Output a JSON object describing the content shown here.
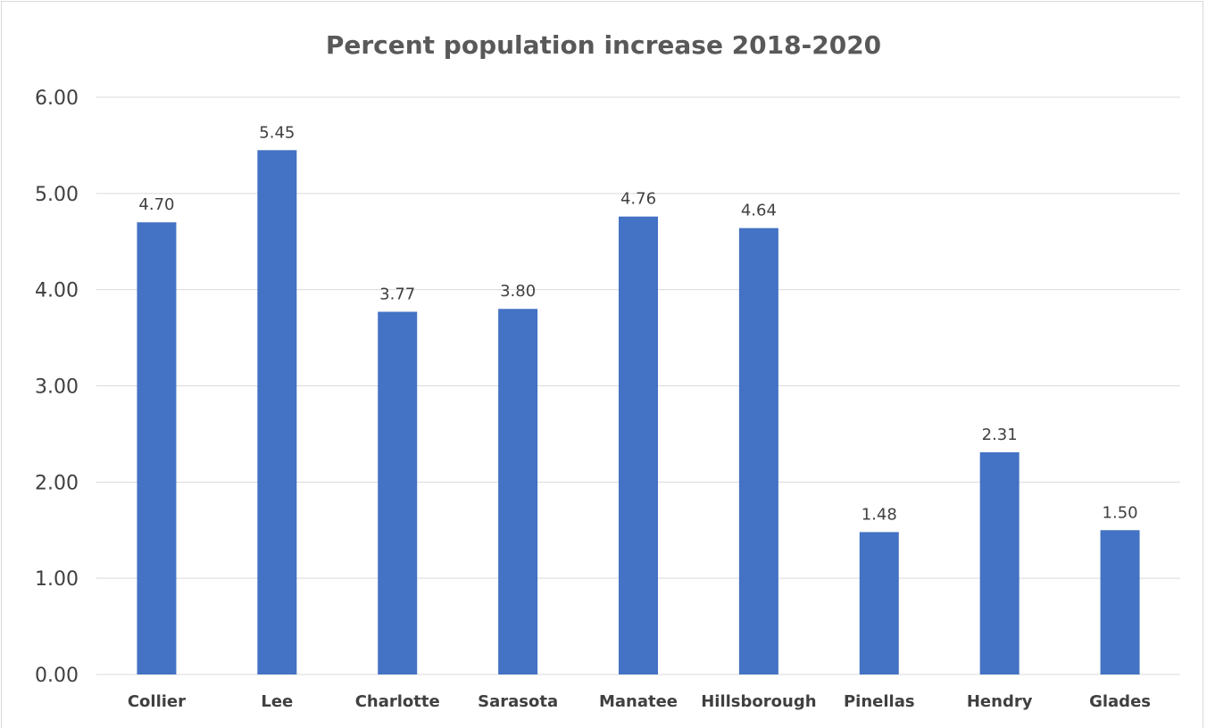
{
  "chart_data": {
    "type": "bar",
    "title": "Percent population increase 2018-2020",
    "categories": [
      "Collier",
      "Lee",
      "Charlotte",
      "Sarasota",
      "Manatee",
      "Hillsborough",
      "Pinellas",
      "Hendry",
      "Glades"
    ],
    "values": [
      4.7,
      5.45,
      3.77,
      3.8,
      4.76,
      4.64,
      1.48,
      2.31,
      1.5
    ],
    "value_labels": [
      "4.70",
      "5.45",
      "3.77",
      "3.80",
      "4.76",
      "4.64",
      "1.48",
      "2.31",
      "1.50"
    ],
    "ylim": [
      0,
      6
    ],
    "yticks": [
      "0.00",
      "1.00",
      "2.00",
      "3.00",
      "4.00",
      "5.00",
      "6.00"
    ],
    "grid": true,
    "legend": "none",
    "bar_color": "#4472c4",
    "grid_color": "#d9d9d9"
  }
}
